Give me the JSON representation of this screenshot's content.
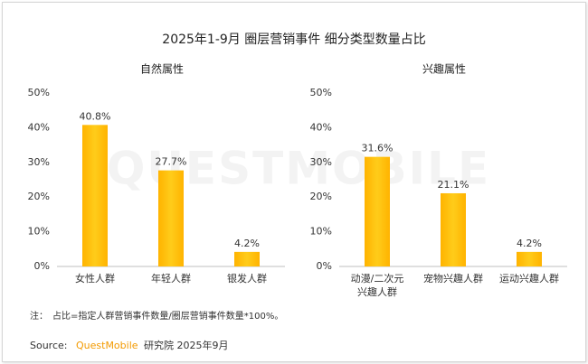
{
  "title": "2025年1-9月 圈层营销事件 细分类型数量占比",
  "watermark": "QUESTMOBILE",
  "chart_data": [
    {
      "type": "bar",
      "title": "自然属性",
      "categories": [
        "女性人群",
        "年轻人群",
        "银发人群"
      ],
      "values": [
        40.8,
        27.7,
        4.2
      ],
      "value_labels": [
        "40.8%",
        "27.7%",
        "4.2%"
      ],
      "color": "#ffc000",
      "ylim": [
        0,
        50
      ],
      "yticks": [
        {
          "value": 0,
          "label": "0%"
        },
        {
          "value": 10,
          "label": "10%"
        },
        {
          "value": 20,
          "label": "20%"
        },
        {
          "value": 30,
          "label": "30%"
        },
        {
          "value": 40,
          "label": "40%"
        },
        {
          "value": 50,
          "label": "50%"
        }
      ]
    },
    {
      "type": "bar",
      "title": "兴趣属性",
      "categories": [
        "动漫/二次元兴趣人群",
        "宠物兴趣人群",
        "运动兴趣人群"
      ],
      "values": [
        31.6,
        21.1,
        4.2
      ],
      "value_labels": [
        "31.6%",
        "21.1%",
        "4.2%"
      ],
      "color": "#ffc000",
      "ylim": [
        0,
        50
      ],
      "yticks": [
        {
          "value": 0,
          "label": "0%"
        },
        {
          "value": 10,
          "label": "10%"
        },
        {
          "value": 20,
          "label": "20%"
        },
        {
          "value": 30,
          "label": "30%"
        },
        {
          "value": 40,
          "label": "40%"
        },
        {
          "value": 50,
          "label": "50%"
        }
      ]
    }
  ],
  "note": {
    "label": "注：",
    "text": "占比=指定人群营销事件数量/圈层营销事件数量*100%。"
  },
  "source": {
    "label": "Source:",
    "brand": "QuestMobile",
    "text": "研究院 2025年9月"
  }
}
